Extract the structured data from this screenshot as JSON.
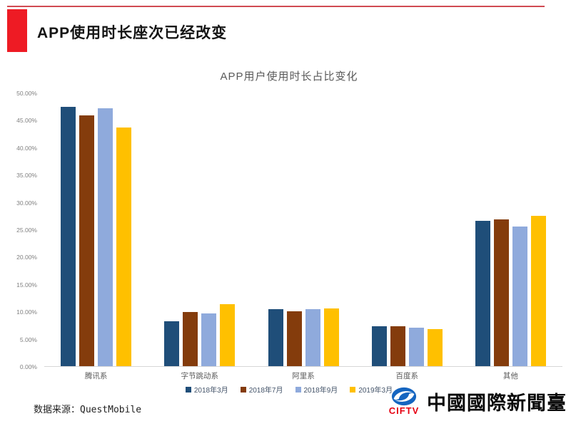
{
  "header": {
    "title": "APP使用时长座次已经改变"
  },
  "chart_data": {
    "type": "bar",
    "title": "APP用户使用时长占比变化",
    "categories": [
      "腾讯系",
      "字节跳动系",
      "阿里系",
      "百度系",
      "其他"
    ],
    "series": [
      {
        "name": "2018年3月",
        "color": "#1F4E79",
        "values": [
          47.5,
          8.2,
          10.4,
          7.3,
          26.6
        ]
      },
      {
        "name": "2018年7月",
        "color": "#843C0C",
        "values": [
          45.9,
          9.9,
          10.0,
          7.3,
          26.9
        ]
      },
      {
        "name": "2018年9月",
        "color": "#8FAADC",
        "values": [
          47.3,
          9.7,
          10.4,
          7.0,
          25.6
        ]
      },
      {
        "name": "2019年3月",
        "color": "#FFC000",
        "values": [
          43.8,
          11.3,
          10.6,
          6.8,
          27.5
        ]
      }
    ],
    "ylim": [
      0,
      50
    ],
    "y_ticks": [
      "50.00%",
      "45.00%",
      "40.00%",
      "35.00%",
      "30.00%",
      "25.00%",
      "20.00%",
      "15.00%",
      "10.00%",
      "5.00%",
      "0.00%"
    ],
    "grid": false,
    "legend_position": "bottom",
    "unit": "%"
  },
  "footer": {
    "source": "数据来源：QuestMobile"
  },
  "logo": {
    "abbr": "CIFTV",
    "name": "中國國際新聞臺",
    "icon": "swirl-globe-icon",
    "icon_color": "#1565c0",
    "abbr_color": "#e60012"
  },
  "accent": {
    "red": "#ee1b24"
  }
}
